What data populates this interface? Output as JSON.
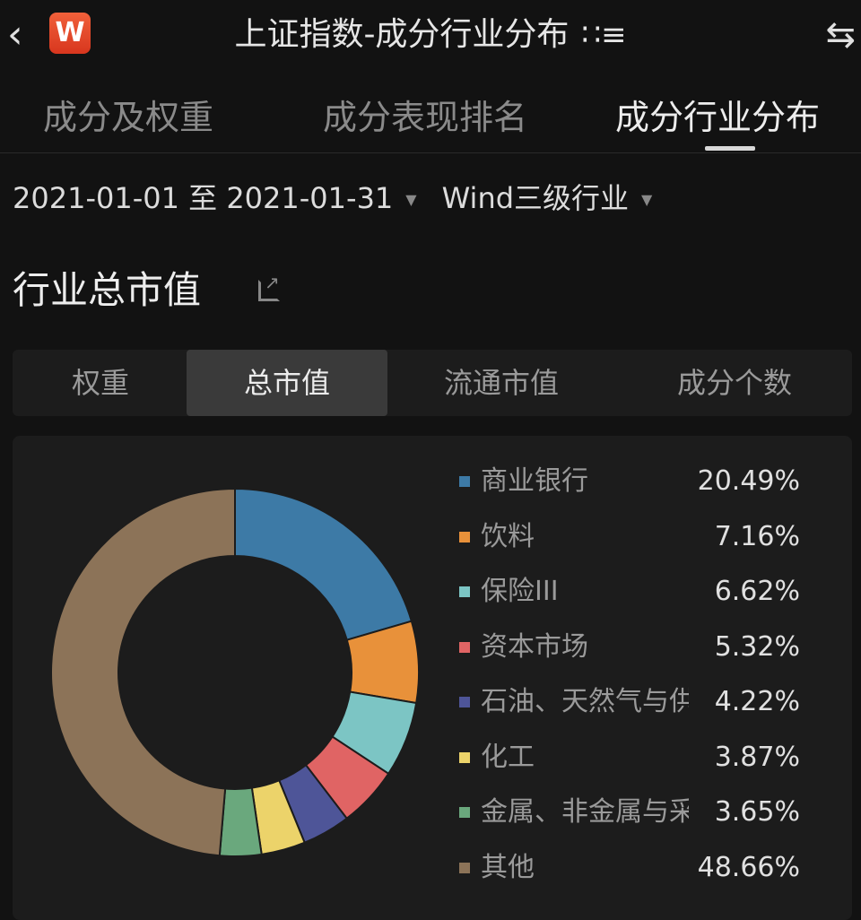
{
  "header": {
    "back_icon": "chevron-left-icon",
    "logo_text": "W",
    "title": "上证指数-成分行业分布",
    "menu_icon": "list-icon",
    "swap_icon": "swap-arrows-icon"
  },
  "tabs": [
    {
      "label": "成分及权重"
    },
    {
      "label": "成分表现排名"
    },
    {
      "label": "成分行业分布",
      "active": true
    }
  ],
  "filters": {
    "date_range": "2021-01-01 至 2021-01-31",
    "industry_level": "Wind三级行业"
  },
  "section": {
    "title": "行业总市值",
    "share_icon": "external-link-icon"
  },
  "segments": [
    {
      "label": "权重"
    },
    {
      "label": "总市值",
      "active": true
    },
    {
      "label": "流通市值"
    },
    {
      "label": "成分个数"
    }
  ],
  "chart_data": {
    "type": "pie",
    "donut": true,
    "legend_position": "right",
    "series": [
      {
        "name": "商业银行",
        "value": 20.49,
        "label": "20.49%",
        "color": "#3d7aa6"
      },
      {
        "name": "饮料",
        "value": 7.16,
        "label": "7.16%",
        "color": "#e8913a"
      },
      {
        "name": "保险III",
        "value": 6.62,
        "label": "6.62%",
        "color": "#7cc5c4"
      },
      {
        "name": "资本市场",
        "value": 5.32,
        "label": "5.32%",
        "color": "#e06464"
      },
      {
        "name": "石油、天然气与供",
        "value": 4.22,
        "label": "4.22%",
        "color": "#4e5598"
      },
      {
        "name": "化工",
        "value": 3.87,
        "label": "3.87%",
        "color": "#ecd36a"
      },
      {
        "name": "金属、非金属与采",
        "value": 3.65,
        "label": "3.65%",
        "color": "#6aa87d"
      },
      {
        "name": "其他",
        "value": 48.66,
        "label": "48.66%",
        "color": "#8c7358"
      }
    ]
  }
}
